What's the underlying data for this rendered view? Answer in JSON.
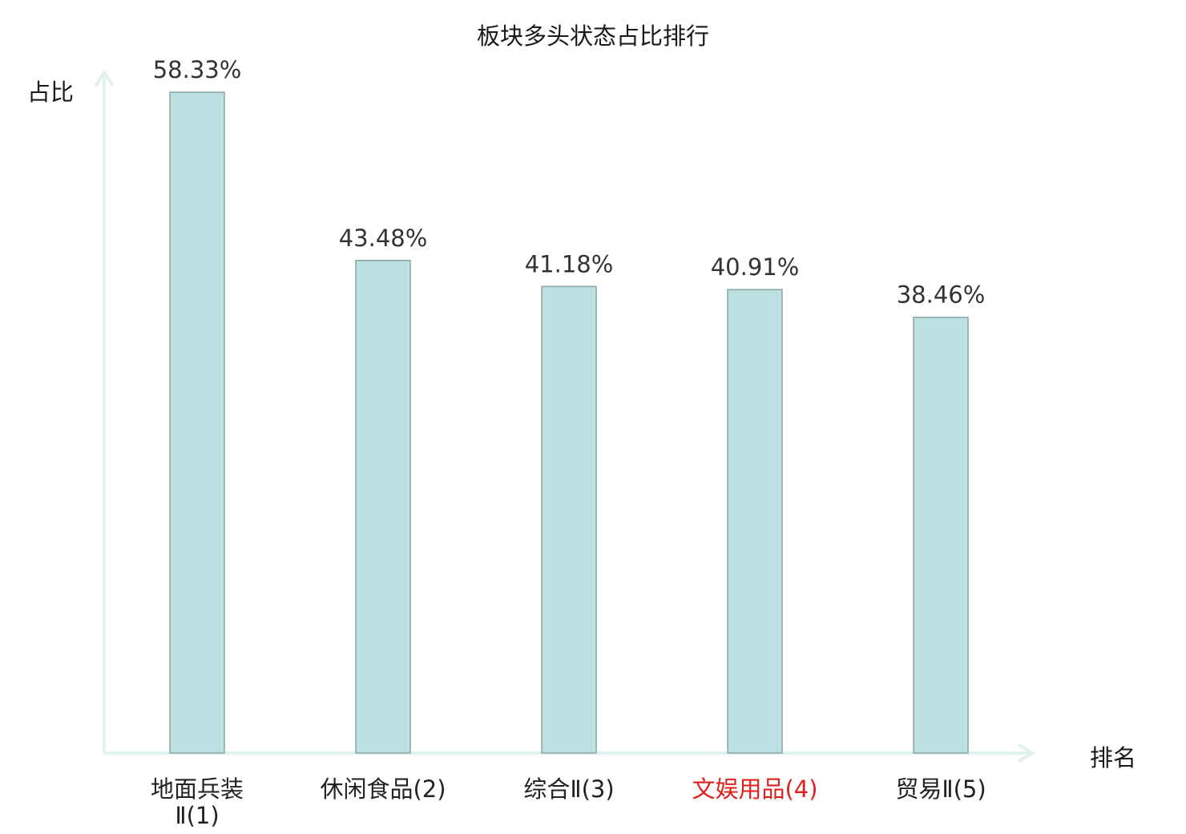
{
  "chart_data": {
    "type": "bar",
    "title": "板块多头状态占比排行",
    "ylabel": "占比",
    "xlabel": "排名",
    "categories": [
      "地面兵装Ⅱ(1)",
      "休闲食品(2)",
      "综合Ⅱ(3)",
      "文娱用品(4)",
      "贸易Ⅱ(5)"
    ],
    "category_lines": [
      [
        "地面兵装",
        "Ⅱ(1)"
      ],
      [
        "休闲食品(2)"
      ],
      [
        "综合Ⅱ(3)"
      ],
      [
        "文娱用品(4)"
      ],
      [
        "贸易Ⅱ(5)"
      ]
    ],
    "values": [
      58.33,
      43.48,
      41.18,
      40.91,
      38.46
    ],
    "value_labels": [
      "58.33%",
      "43.48%",
      "41.18%",
      "40.91%",
      "38.46%"
    ],
    "highlight_index": 3,
    "ylim": [
      0,
      58.33
    ],
    "grid": false,
    "legend": "none"
  },
  "colors": {
    "bar_fill": "#bce0e2",
    "bar_stroke": "#8aa5a7",
    "axis": "#dff2ef",
    "label_text": "#333333",
    "tick_text": "#222222",
    "highlight_text": "#e0201c"
  }
}
